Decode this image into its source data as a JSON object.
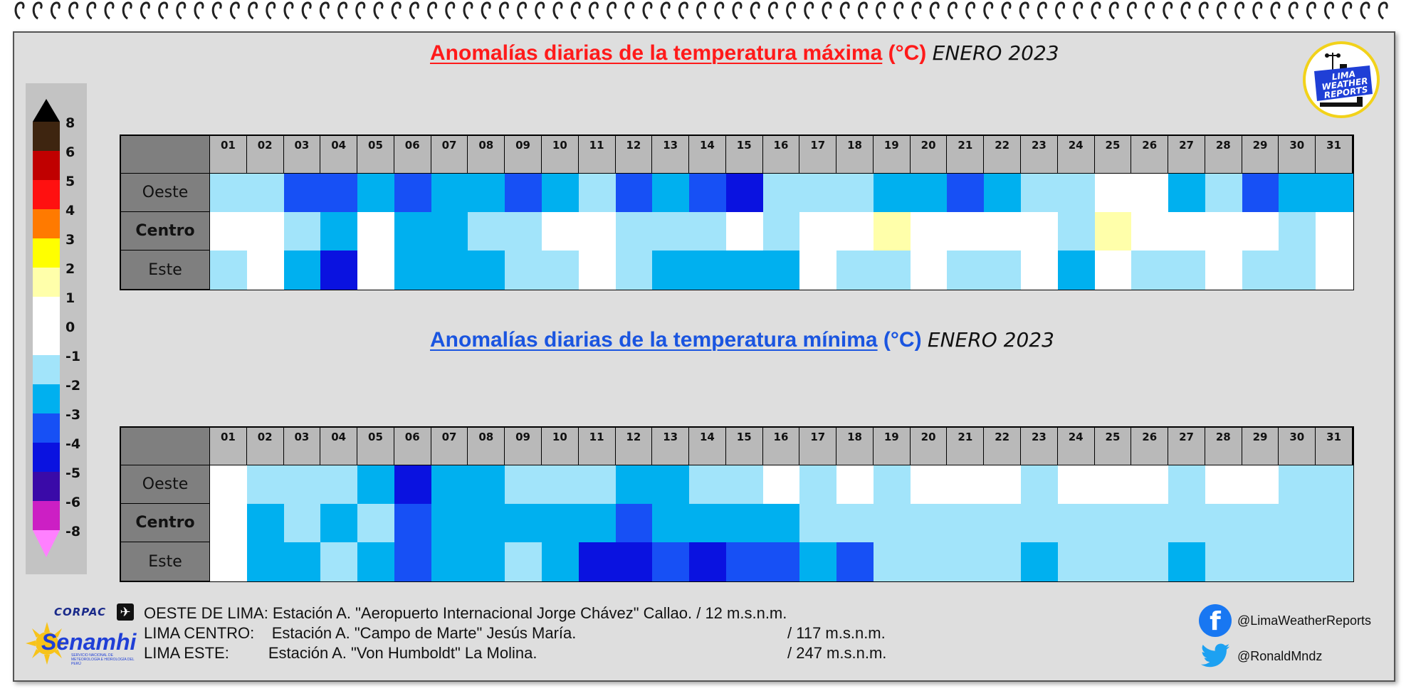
{
  "colors": {
    "w": "#ffffff",
    "y": "#ffffaa",
    "l": "#a2e4fa",
    "m": "#00b0ef",
    "b": "#1750f5",
    "d": "#0a12e0"
  },
  "titles": {
    "max_main": "Anomalías diarias de la temperatura máxima",
    "max_unit": "(°C)",
    "max_month": "ENERO 2023",
    "min_main": "Anomalías diarias de la temperatura mínima",
    "min_unit": "(°C)",
    "min_month": "ENERO 2023"
  },
  "logo": {
    "text": "LIMA WEATHER REPORTS"
  },
  "legend": {
    "labels": [
      "8",
      "6",
      "5",
      "4",
      "3",
      "2",
      "1",
      "0",
      "-1",
      "-2",
      "-3",
      "-4",
      "-5",
      "-6",
      "-8"
    ],
    "swatches": [
      "#3e2510",
      "#c00000",
      "#ff1010",
      "#ff7a00",
      "#ffff00",
      "#ffffaa",
      "#ffffff",
      "#ffffff",
      "#a2e4fa",
      "#00b0ef",
      "#1750f5",
      "#0a12e0",
      "#3a0aa8",
      "#cc1fc4"
    ],
    "top_arrow": "#000000",
    "bottom_arrow": "#ff80ff"
  },
  "chart_data": [
    {
      "type": "heatmap",
      "title": "Anomalías diarias de la temperatura máxima (°C) ENERO 2023",
      "x": [
        "01",
        "02",
        "03",
        "04",
        "05",
        "06",
        "07",
        "08",
        "09",
        "10",
        "11",
        "12",
        "13",
        "14",
        "15",
        "16",
        "17",
        "18",
        "19",
        "20",
        "21",
        "22",
        "23",
        "24",
        "25",
        "26",
        "27",
        "28",
        "29",
        "30",
        "31"
      ],
      "rows": [
        "Oeste",
        "Centro",
        "Este"
      ],
      "values_legend_class": {
        "Oeste": [
          "l",
          "l",
          "b",
          "b",
          "m",
          "b",
          "m",
          "m",
          "b",
          "m",
          "l",
          "b",
          "m",
          "b",
          "d",
          "l",
          "l",
          "l",
          "m",
          "m",
          "b",
          "m",
          "l",
          "l",
          "w",
          "w",
          "m",
          "l",
          "b",
          "m",
          "m"
        ],
        "Centro": [
          "w",
          "w",
          "l",
          "m",
          "w",
          "m",
          "m",
          "l",
          "l",
          "w",
          "w",
          "l",
          "l",
          "l",
          "w",
          "l",
          "w",
          "w",
          "y",
          "w",
          "w",
          "w",
          "w",
          "l",
          "y",
          "w",
          "w",
          "w",
          "w",
          "l",
          "w"
        ],
        "Este": [
          "l",
          "w",
          "m",
          "d",
          "w",
          "m",
          "m",
          "m",
          "l",
          "l",
          "w",
          "l",
          "m",
          "m",
          "m",
          "m",
          "w",
          "l",
          "l",
          "w",
          "l",
          "l",
          "w",
          "m",
          "w",
          "l",
          "l",
          "w",
          "l",
          "l",
          "w"
        ]
      }
    },
    {
      "type": "heatmap",
      "title": "Anomalías diarias de la temperatura mínima (°C) ENERO 2023",
      "x": [
        "01",
        "02",
        "03",
        "04",
        "05",
        "06",
        "07",
        "08",
        "09",
        "10",
        "11",
        "12",
        "13",
        "14",
        "15",
        "16",
        "17",
        "18",
        "19",
        "20",
        "21",
        "22",
        "23",
        "24",
        "25",
        "26",
        "27",
        "28",
        "29",
        "30",
        "31"
      ],
      "rows": [
        "Oeste",
        "Centro",
        "Este"
      ],
      "values_legend_class": {
        "Oeste": [
          "w",
          "l",
          "l",
          "l",
          "m",
          "d",
          "m",
          "m",
          "l",
          "l",
          "l",
          "m",
          "m",
          "l",
          "l",
          "w",
          "l",
          "w",
          "l",
          "w",
          "w",
          "w",
          "l",
          "w",
          "w",
          "w",
          "l",
          "w",
          "w",
          "l",
          "l"
        ],
        "Centro": [
          "w",
          "m",
          "l",
          "m",
          "l",
          "b",
          "m",
          "m",
          "m",
          "m",
          "m",
          "b",
          "m",
          "m",
          "m",
          "m",
          "l",
          "l",
          "l",
          "l",
          "l",
          "l",
          "l",
          "l",
          "l",
          "l",
          "l",
          "l",
          "l",
          "l",
          "l"
        ],
        "Este": [
          "w",
          "m",
          "m",
          "l",
          "m",
          "b",
          "m",
          "m",
          "l",
          "m",
          "d",
          "d",
          "b",
          "d",
          "b",
          "b",
          "m",
          "b",
          "l",
          "l",
          "l",
          "l",
          "m",
          "l",
          "l",
          "l",
          "m",
          "l",
          "l",
          "l",
          "l"
        ]
      }
    }
  ],
  "footer": {
    "corpac": "CORPAC",
    "senamhi": "Senamhi",
    "senamhi_sub": "SERVICIO NACIONAL DE METEOROLOGÍA E HIDROLOGÍA DEL PERÚ",
    "line1": "OESTE DE LIMA: Estación A. \"Aeropuerto Internacional Jorge Chávez\" Callao. / 12 m.s.n.m.",
    "line2_a": "LIMA CENTRO:    Estación A. \"Campo de Marte\" Jesús María.",
    "line2_b": "/ 117 m.s.n.m.",
    "line3_a": "LIMA ESTE:         Estación A. \"Von Humboldt\" La Molina.",
    "line3_b": "/ 247 m.s.n.m."
  },
  "social": {
    "facebook": "@LimaWeatherReports",
    "twitter": "@RonaldMndz"
  }
}
